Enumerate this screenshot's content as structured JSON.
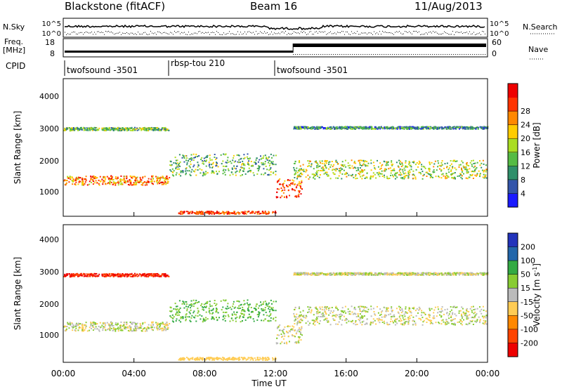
{
  "header": {
    "station": "Blackstone (fitACF)",
    "beam": "Beam 16",
    "date": "11/Aug/2013"
  },
  "top_panel": {
    "left_label": "N.Sky",
    "right_label": "N.Search",
    "left_ticks": [
      "10^5",
      "10^0"
    ],
    "right_ticks": [
      "10^5",
      "10^0"
    ]
  },
  "freq_panel": {
    "left_label_line1": "Freq.",
    "left_label_line2": "[MHz]",
    "right_label": "Nave",
    "left_ticks": [
      "18",
      "8"
    ],
    "right_ticks": [
      "60",
      "0"
    ]
  },
  "cpid_panel": {
    "label": "CPID",
    "segments": [
      "twofsound -3501",
      "rbsp-tou 210",
      "twofsound -3501"
    ]
  },
  "power_panel": {
    "ylabel": "Slant Range [km]",
    "yticks": [
      "1000",
      "2000",
      "3000",
      "4000"
    ],
    "colorbar_label": "Power [dB]",
    "colorbar_ticks": [
      "4",
      "8",
      "12",
      "16",
      "20",
      "24",
      "28"
    ],
    "colorbar_colors": [
      "#1a1aff",
      "#3355aa",
      "#2f8f6a",
      "#55bb44",
      "#aadd22",
      "#ffcc00",
      "#ff8800",
      "#ff3300",
      "#ee0000"
    ]
  },
  "velocity_panel": {
    "ylabel": "Slant Range [km]",
    "yticks": [
      "1000",
      "2000",
      "3000",
      "4000"
    ],
    "colorbar_label": "Velocity [m s",
    "colorbar_label_sup": "-1",
    "colorbar_label_end": "]",
    "colorbar_ticks": [
      "200",
      "100",
      "50",
      "15",
      "-15",
      "-50",
      "-100",
      "-200"
    ],
    "colorbar_colors": [
      "#2233bb",
      "#2266aa",
      "#33aa44",
      "#88cc33",
      "#bbbbbb",
      "#ffcc55",
      "#ff8800",
      "#ff4400",
      "#ee0000"
    ]
  },
  "x_axis": {
    "ticks": [
      "00:00",
      "04:00",
      "08:00",
      "12:00",
      "16:00",
      "20:00",
      "00:00"
    ],
    "label": "Time UT"
  },
  "chart_data": {
    "type": "heatmap",
    "title": "Blackstone (fitACF)   Beam 16   11/Aug/2013",
    "xlabel": "Time UT",
    "ylabel": "Slant Range [km]",
    "xlim_hours": [
      0,
      24
    ],
    "ylim_km": [
      180,
      4600
    ],
    "cpid_segments": [
      {
        "name": "twofsound -3501",
        "start_hour": 0.0,
        "end_hour": 6.0
      },
      {
        "name": "rbsp-tou 210",
        "start_hour": 6.0,
        "end_hour": 12.0
      },
      {
        "name": "twofsound -3501",
        "start_hour": 12.0,
        "end_hour": 24.0
      }
    ],
    "freq_step": {
      "before_hour": 13.0,
      "low_mhz": 10,
      "high_mhz": 14
    },
    "scatter_bands": [
      {
        "start_hour": 0.0,
        "end_hour": 6.0,
        "range_start_km": 1200,
        "range_end_km": 1500,
        "power_db": 24
      },
      {
        "start_hour": 0.0,
        "end_hour": 6.0,
        "range_start_km": 2950,
        "range_end_km": 3050,
        "power_db": 10
      },
      {
        "start_hour": 6.0,
        "end_hour": 12.0,
        "range_start_km": 1500,
        "range_end_km": 2200,
        "power_db": 12
      },
      {
        "start_hour": 12.0,
        "end_hour": 13.5,
        "range_start_km": 800,
        "range_end_km": 1400,
        "power_db": 28
      },
      {
        "start_hour": 13.0,
        "end_hour": 24.0,
        "range_start_km": 1400,
        "range_end_km": 2000,
        "power_db": 16
      },
      {
        "start_hour": 13.0,
        "end_hour": 24.0,
        "range_start_km": 3000,
        "range_end_km": 3080,
        "power_db": 6
      }
    ]
  }
}
